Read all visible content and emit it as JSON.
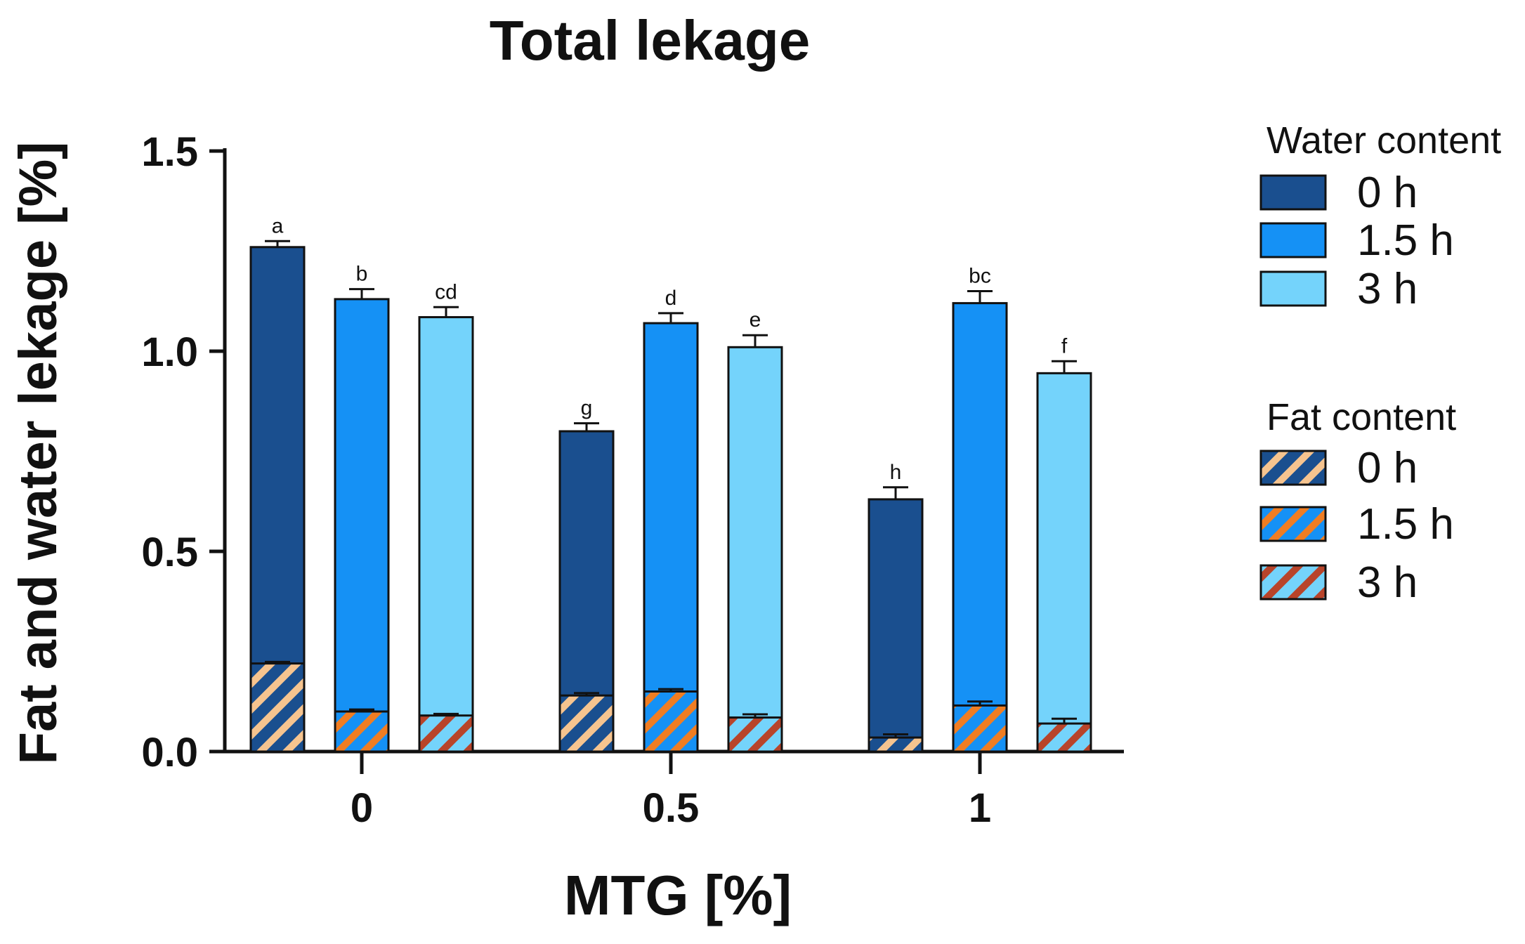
{
  "chart_data": {
    "type": "bar",
    "title": "Total lekage",
    "xlabel": "MTG [%]",
    "ylabel": "Fat and water lekage [%]",
    "ylim": [
      0,
      1.5
    ],
    "yticks": [
      "0.0",
      "0.5",
      "1.0",
      "1.5"
    ],
    "ytick_values": [
      0,
      0.5,
      1.0,
      1.5
    ],
    "categories": [
      "0",
      "0.5",
      "1"
    ],
    "stacked": true,
    "series": [
      {
        "name": "0 h",
        "water_total": [
          1.26,
          0.8,
          0.63
        ],
        "water_err": [
          0.015,
          0.02,
          0.03
        ],
        "fat": [
          0.22,
          0.14,
          0.035
        ],
        "fat_err": [
          0.004,
          0.006,
          0.008
        ],
        "letters": [
          "a",
          "g",
          "h"
        ]
      },
      {
        "name": "1.5 h",
        "water_total": [
          1.13,
          1.07,
          1.12
        ],
        "water_err": [
          0.025,
          0.025,
          0.03
        ],
        "fat": [
          0.1,
          0.15,
          0.115
        ],
        "fat_err": [
          0.005,
          0.006,
          0.01
        ],
        "letters": [
          "b",
          "d",
          "bc"
        ]
      },
      {
        "name": "3 h",
        "water_total": [
          1.085,
          1.01,
          0.945
        ],
        "water_err": [
          0.025,
          0.03,
          0.03
        ],
        "fat": [
          0.09,
          0.085,
          0.07
        ],
        "fat_err": [
          0.004,
          0.008,
          0.012
        ],
        "letters": [
          "cd",
          "e",
          "f"
        ]
      }
    ],
    "legend": {
      "position": "right",
      "water_title": "Water content",
      "fat_title": "Fat content",
      "labels": [
        "0 h",
        "1.5 h",
        "3 h"
      ]
    },
    "colors": {
      "water": [
        "#1a4f8f",
        "#1591f5",
        "#74d3fb"
      ],
      "fat_stripe": [
        "#f6c48f",
        "#f07d22",
        "#b8442a"
      ],
      "axis": "#111111"
    }
  }
}
